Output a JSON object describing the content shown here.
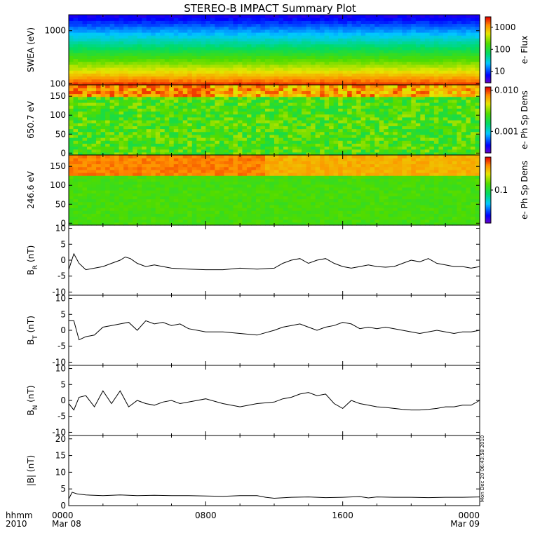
{
  "title": "STEREO-B IMPACT Summary Plot",
  "footer": {
    "hhmm": "hhmm",
    "year": "2010",
    "stamp": "Mon Dec 20 06:43:58 2010"
  },
  "time_axis": {
    "range_hours": [
      0,
      24
    ],
    "ticks": [
      {
        "hour": 0,
        "label": "0000",
        "sub": "Mar 08"
      },
      {
        "hour": 8,
        "label": "0800",
        "sub": ""
      },
      {
        "hour": 16,
        "label": "1600",
        "sub": ""
      },
      {
        "hour": 24,
        "label": "0000",
        "sub": "Mar 09"
      }
    ]
  },
  "colors": {
    "line": "#000000",
    "background": "#ffffff"
  },
  "chart_data": [
    {
      "type": "heatmap",
      "ylabel": "SWEA (eV)",
      "ylog": true,
      "ylim": [
        95,
        2000
      ],
      "yticks": [
        {
          "v": 100,
          "label": "100"
        },
        {
          "v": 1000,
          "label": "1000"
        }
      ],
      "colorbar": {
        "label": "e- Flux",
        "log": true,
        "range": [
          3,
          3000
        ],
        "ticks": [
          {
            "v": 10,
            "label": "10"
          },
          {
            "v": 100,
            "label": "100"
          },
          {
            "v": 1000,
            "label": "1000"
          }
        ]
      },
      "profile": "energy"
    },
    {
      "type": "heatmap",
      "ylabel": "650.7 eV",
      "ylim": [
        -5,
        180
      ],
      "yticks": [
        {
          "v": 0,
          "label": "0"
        },
        {
          "v": 50,
          "label": "50"
        },
        {
          "v": 100,
          "label": "100"
        },
        {
          "v": 150,
          "label": "150"
        }
      ],
      "colorbar": {
        "label": "e- Ph Sp Dens",
        "log": true,
        "range": [
          0.0003,
          0.012
        ],
        "ticks": [
          {
            "v": 0.001,
            "label": "0.001"
          },
          {
            "v": 0.01,
            "label": "0.010"
          }
        ]
      },
      "profile": "pitch650"
    },
    {
      "type": "heatmap",
      "ylabel": "246.6 eV",
      "ylim": [
        -5,
        180
      ],
      "yticks": [
        {
          "v": 0,
          "label": "0"
        },
        {
          "v": 50,
          "label": "50"
        },
        {
          "v": 100,
          "label": "100"
        },
        {
          "v": 150,
          "label": "150"
        }
      ],
      "colorbar": {
        "label": "e- Ph Sp Dens",
        "log": true,
        "range": [
          0.02,
          0.5
        ],
        "ticks": [
          {
            "v": 0.1,
            "label": "0.1"
          }
        ]
      },
      "profile": "pitch246"
    },
    {
      "type": "line",
      "ylabel": "B",
      "ysub": "R",
      "yunit": " (nT)",
      "ylim": [
        -11,
        11
      ],
      "yticks": [
        -10,
        -5,
        0,
        5,
        10
      ],
      "x": [
        0,
        0.3,
        0.6,
        1,
        1.5,
        2,
        2.5,
        3,
        3.3,
        3.6,
        4,
        4.5,
        5,
        5.5,
        6,
        7,
        8,
        9,
        10,
        11,
        12,
        12.5,
        13,
        13.5,
        14,
        14.5,
        15,
        15.5,
        16,
        16.5,
        17,
        17.5,
        18,
        18.5,
        19,
        19.5,
        20,
        20.5,
        21,
        21.5,
        22,
        22.5,
        23,
        23.5,
        24
      ],
      "y": [
        -3,
        2,
        -1,
        -3,
        -2.5,
        -2,
        -1,
        0,
        1,
        0.5,
        -1,
        -2,
        -1.5,
        -2,
        -2.5,
        -2.8,
        -3,
        -3,
        -2.5,
        -2.8,
        -2.5,
        -1,
        0,
        0.5,
        -1,
        0,
        0.5,
        -1,
        -2,
        -2.5,
        -2,
        -1.5,
        -2,
        -2.2,
        -2,
        -1,
        0,
        -0.5,
        0.5,
        -1,
        -1.5,
        -2,
        -2,
        -2.5,
        -2
      ]
    },
    {
      "type": "line",
      "ylabel": "B",
      "ysub": "T",
      "yunit": " (nT)",
      "ylim": [
        -11,
        11
      ],
      "yticks": [
        -10,
        -5,
        0,
        5,
        10
      ],
      "x": [
        0,
        0.3,
        0.6,
        1,
        1.5,
        2,
        2.5,
        3,
        3.5,
        4,
        4.5,
        5,
        5.5,
        6,
        6.5,
        7,
        8,
        9,
        10,
        11,
        12,
        12.5,
        13,
        13.5,
        14,
        14.5,
        15,
        15.5,
        16,
        16.5,
        17,
        17.5,
        18,
        18.5,
        19,
        19.5,
        20,
        20.5,
        21,
        21.5,
        22,
        22.5,
        23,
        23.5,
        24
      ],
      "y": [
        3,
        3,
        -3,
        -2,
        -1.5,
        1,
        1.5,
        2,
        2.5,
        0,
        3,
        2,
        2.5,
        1.5,
        2,
        0.5,
        -0.5,
        -0.5,
        -1,
        -1.5,
        0,
        1,
        1.5,
        2,
        1,
        0,
        1,
        1.5,
        2.5,
        2,
        0.5,
        1,
        0.5,
        1,
        0.5,
        0,
        -0.5,
        -1,
        -0.5,
        0,
        -0.5,
        -1,
        -0.5,
        -0.5,
        0
      ]
    },
    {
      "type": "line",
      "ylabel": "B",
      "ysub": "N",
      "yunit": " (nT)",
      "ylim": [
        -11,
        11
      ],
      "yticks": [
        -10,
        -5,
        0,
        5,
        10
      ],
      "x": [
        0,
        0.3,
        0.6,
        1,
        1.5,
        2,
        2.5,
        3,
        3.5,
        4,
        4.5,
        5,
        5.5,
        6,
        6.5,
        7,
        7.5,
        8,
        9,
        10,
        11,
        12,
        12.5,
        13,
        13.5,
        14,
        14.5,
        15,
        15.5,
        16,
        16.5,
        17,
        17.5,
        18,
        18.5,
        19,
        19.5,
        20,
        20.5,
        21,
        21.5,
        22,
        22.5,
        23,
        23.5,
        24
      ],
      "y": [
        -1,
        -3,
        1,
        1.5,
        -2,
        3,
        -1,
        3,
        -2,
        0,
        -1,
        -1.5,
        -0.5,
        0,
        -1,
        -0.5,
        0,
        0.5,
        -1,
        -2,
        -1,
        -0.5,
        0.5,
        1,
        2,
        2.5,
        1.5,
        2,
        -1,
        -2.5,
        0,
        -1,
        -1.5,
        -2,
        -2.2,
        -2.5,
        -2.8,
        -3,
        -3,
        -2.8,
        -2.5,
        -2,
        -2,
        -1.5,
        -1.5,
        0
      ]
    },
    {
      "type": "line",
      "ylabel": "|B| (nT)",
      "ylim": [
        0,
        21
      ],
      "yticks": [
        0,
        5,
        10,
        15,
        20
      ],
      "x": [
        0,
        0.2,
        0.5,
        1,
        2,
        3,
        4,
        5,
        6,
        7,
        8,
        9,
        10,
        11,
        11.5,
        12,
        13,
        14,
        15,
        16,
        17,
        17.5,
        18,
        19,
        20,
        21,
        22,
        23,
        24
      ],
      "y": [
        2,
        4,
        3.5,
        3.2,
        3,
        3.2,
        3,
        3.1,
        3,
        3,
        2.9,
        2.8,
        3,
        3,
        2.5,
        2.2,
        2.5,
        2.6,
        2.4,
        2.5,
        2.7,
        2.3,
        2.6,
        2.5,
        2.5,
        2.4,
        2.5,
        2.5,
        2.6
      ]
    }
  ]
}
